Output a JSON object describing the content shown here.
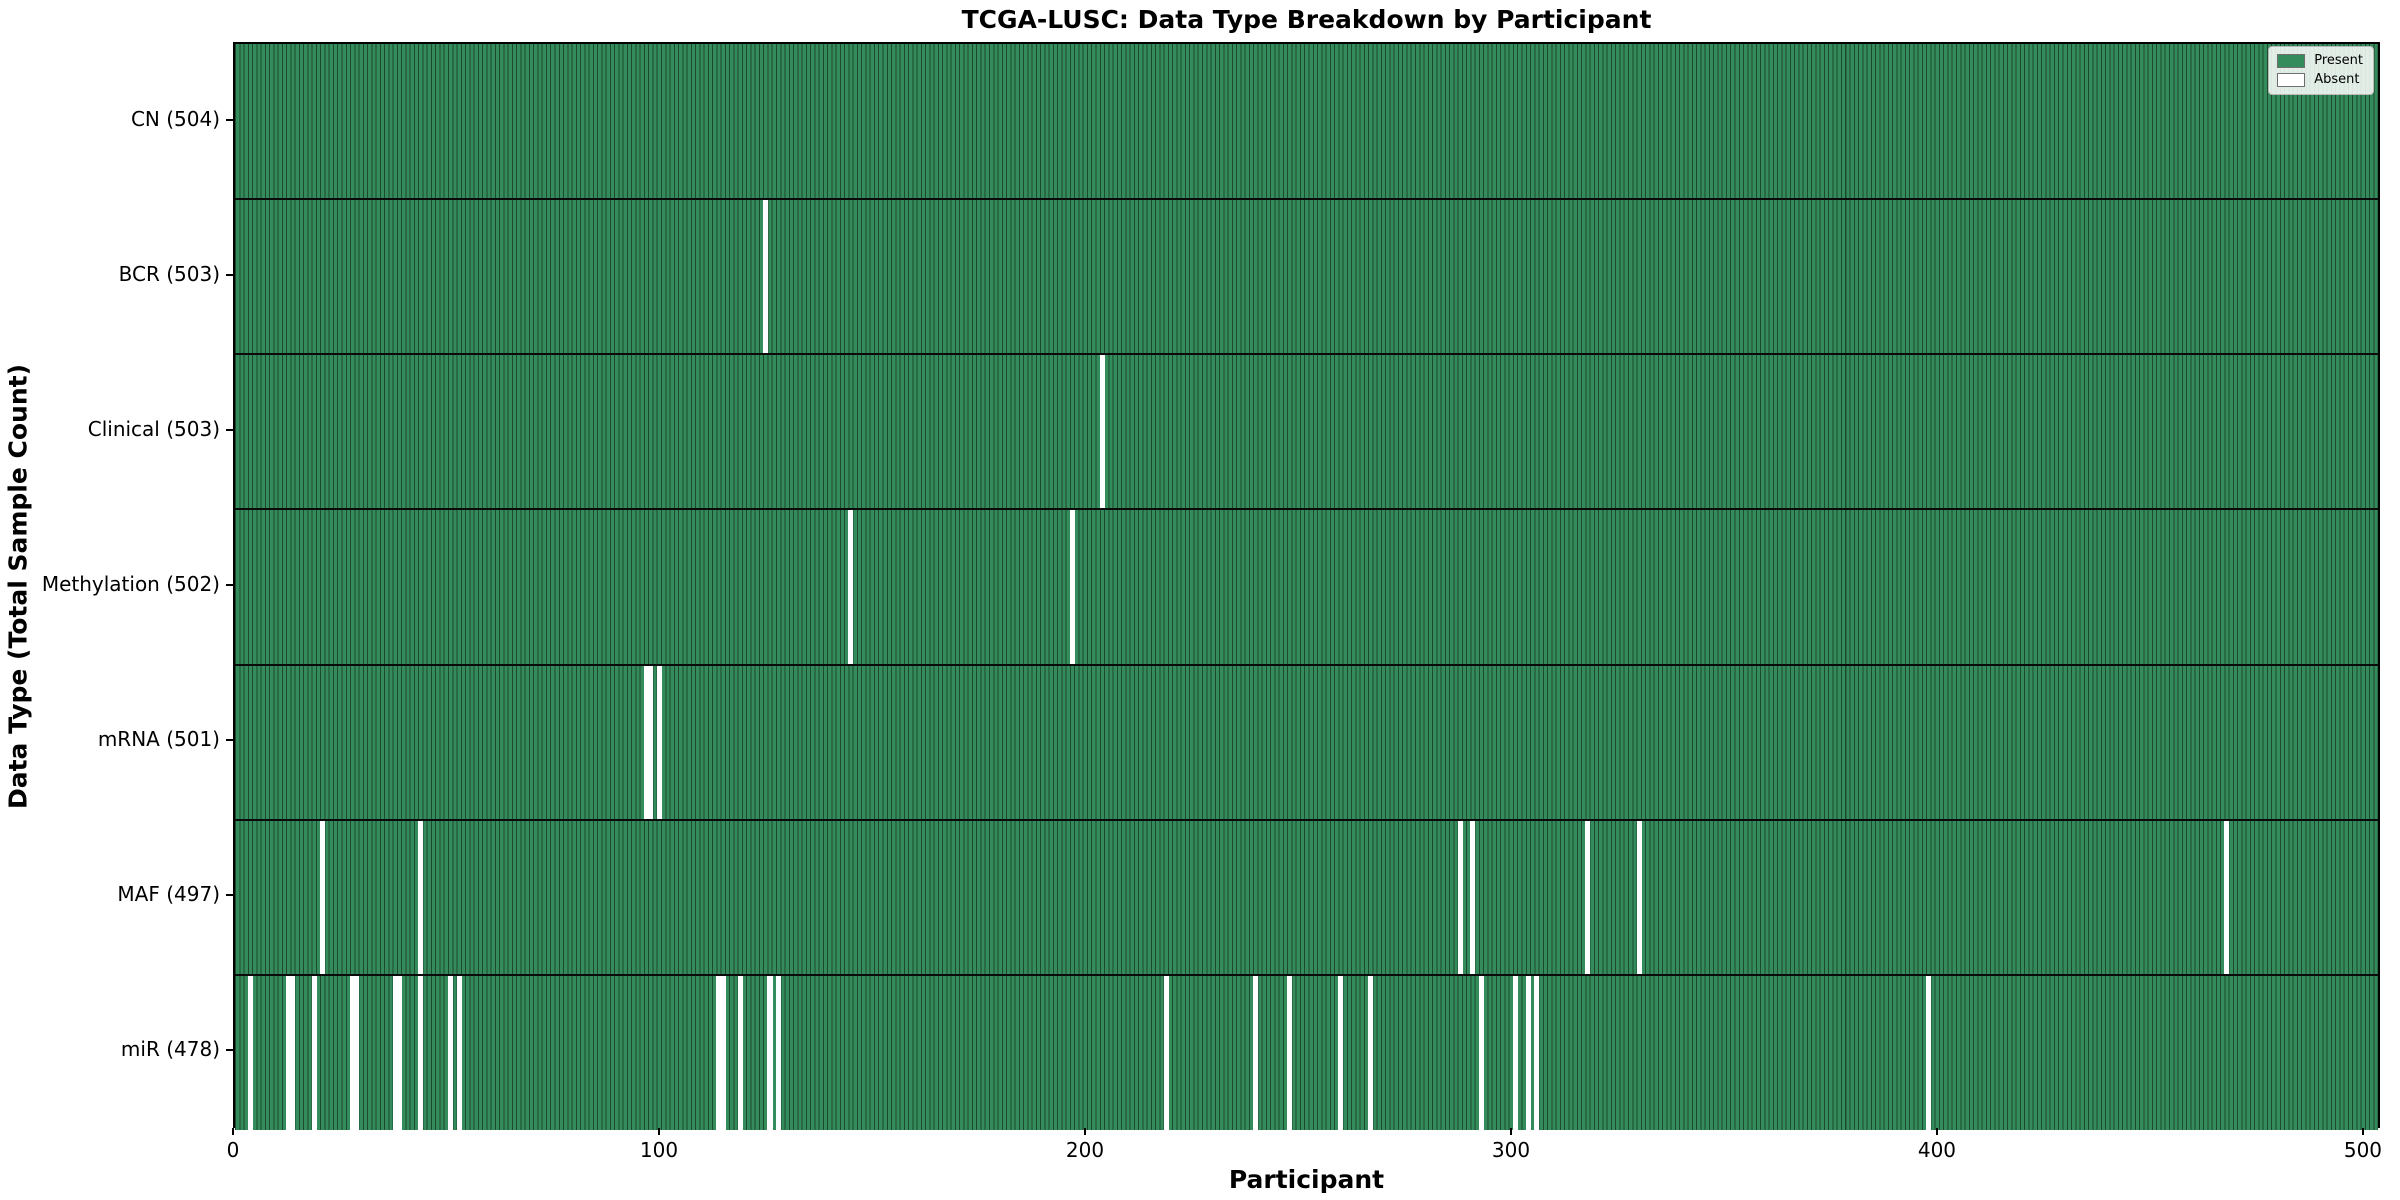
{
  "figure": {
    "title": "TCGA-LUSC: Data Type Breakdown by Participant",
    "xlabel": "Participant",
    "ylabel": "Data Type (Total Sample Count)"
  },
  "legend": {
    "present_label": "Present",
    "absent_label": "Absent"
  },
  "colors": {
    "present_fill": "#348b5b",
    "cell_edge": "#1b4a2e",
    "absent_fill": "#ffffff",
    "separator": "#0a0a0a",
    "plot_border": "#000000"
  },
  "chart_data": {
    "type": "heatmap",
    "title": "TCGA-LUSC: Data Type Breakdown by Participant",
    "xlabel": "Participant",
    "ylabel": "Data Type (Total Sample Count)",
    "x_ticks": [
      0,
      100,
      200,
      300,
      400,
      500
    ],
    "xlim": [
      0,
      504
    ],
    "n_participants": 504,
    "grid": false,
    "legend_position": "upper right",
    "legend_entries": [
      {
        "label": "Present",
        "value": 1
      },
      {
        "label": "Absent",
        "value": 0
      }
    ],
    "rows": [
      {
        "label": "CN (504)",
        "data_type": "CN",
        "present_count": 504,
        "absent_participants": []
      },
      {
        "label": "BCR (503)",
        "data_type": "BCR",
        "present_count": 503,
        "absent_participants": [
          124
        ]
      },
      {
        "label": "Clinical (503)",
        "data_type": "Clinical",
        "present_count": 503,
        "absent_participants": [
          203
        ]
      },
      {
        "label": "Methylation (502)",
        "data_type": "Methylation",
        "present_count": 502,
        "absent_participants": [
          144,
          196
        ]
      },
      {
        "label": "mRNA (501)",
        "data_type": "mRNA",
        "present_count": 501,
        "absent_participants": [
          96,
          97,
          99
        ]
      },
      {
        "label": "MAF (497)",
        "data_type": "MAF",
        "present_count": 497,
        "absent_participants": [
          20,
          43,
          287,
          290,
          317,
          329,
          467
        ]
      },
      {
        "label": "miR (478)",
        "data_type": "miR",
        "present_count": 478,
        "absent_participants": [
          3,
          12,
          13,
          18,
          27,
          28,
          37,
          38,
          43,
          50,
          52,
          113,
          114,
          118,
          125,
          127,
          218,
          239,
          247,
          259,
          266,
          292,
          300,
          303,
          305,
          397
        ]
      }
    ]
  }
}
